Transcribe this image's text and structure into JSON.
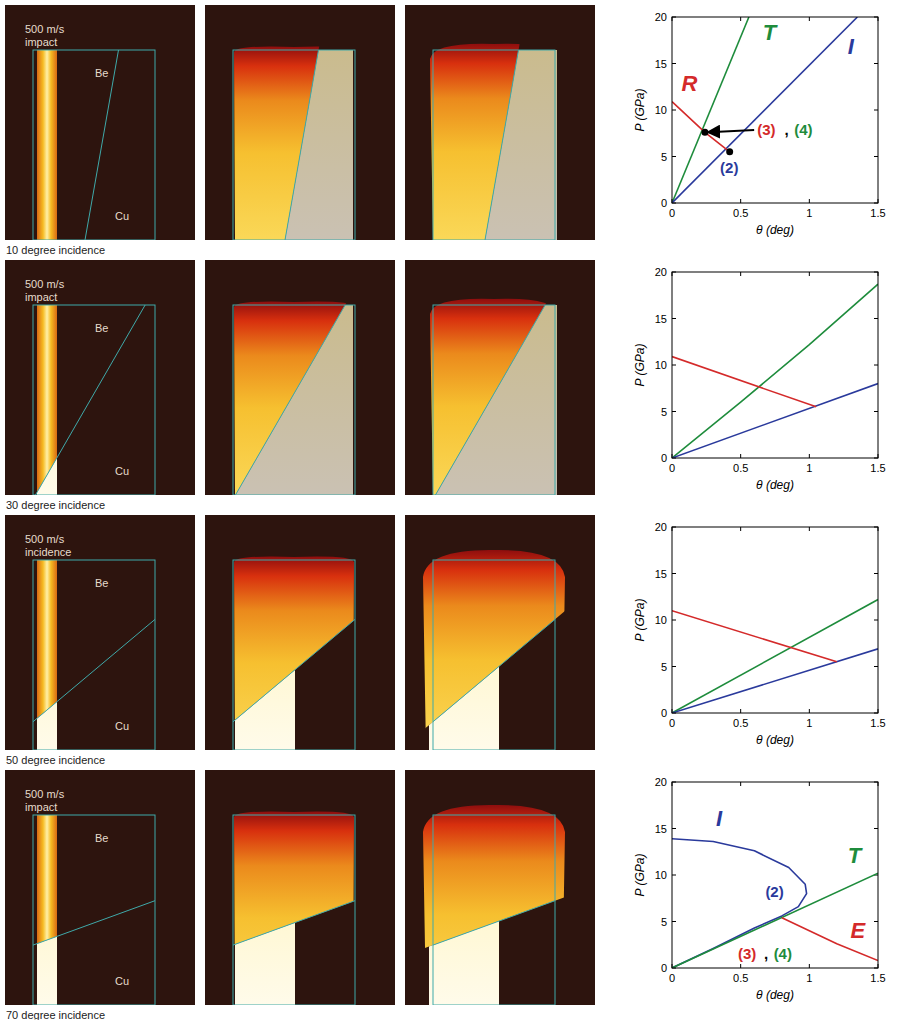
{
  "chart_data": [
    {
      "type": "line",
      "xlabel": "θ (deg)",
      "ylabel": "P (GPa)",
      "xlim": [
        0,
        1.5
      ],
      "ylim": [
        0,
        20
      ],
      "xticks": [
        0,
        0.5,
        1,
        1.5
      ],
      "yticks": [
        0,
        5,
        10,
        15,
        20
      ],
      "series": [
        {
          "color": "#1e8c3c",
          "x": [
            0,
            0.56
          ],
          "values": [
            0,
            20
          ]
        },
        {
          "color": "#2a3a9c",
          "x": [
            0,
            1.35
          ],
          "values": [
            0,
            20
          ]
        },
        {
          "color": "#d42a2a",
          "x": [
            0,
            0.24,
            0.42
          ],
          "values": [
            10.9,
            7.6,
            5.5
          ]
        },
        {
          "color": "#000000",
          "marker": "circle",
          "line_style": "none",
          "x": [
            0.42,
            0.24
          ],
          "values": [
            5.5,
            7.6
          ]
        }
      ],
      "annotations": [
        {
          "text": "T",
          "color": "#1e8c3c",
          "x": 0.66,
          "y": 17.5
        },
        {
          "text": "I",
          "color": "#2a3a9c",
          "x": 1.28,
          "y": 16
        },
        {
          "text": "R",
          "color": "#d42a2a",
          "x": 0.07,
          "y": 12
        },
        {
          "text": "(2)",
          "color": "#2a3a9c",
          "x": 0.35,
          "y": 3.2
        },
        {
          "text": "(3)",
          "color": "#d42a2a",
          "x": 0.62,
          "y": 7.3,
          "arrow_to": [
            0.24,
            7.6
          ]
        },
        {
          "text": ",",
          "color": "#000000",
          "x": 0.82,
          "y": 7.3
        },
        {
          "text": "(4)",
          "color": "#1e8c3c",
          "x": 0.89,
          "y": 7.3
        }
      ]
    },
    {
      "type": "line",
      "xlabel": "θ (deg)",
      "ylabel": "P (GPa)",
      "xlim": [
        0,
        1.5
      ],
      "ylim": [
        0,
        20
      ],
      "xticks": [
        0,
        0.5,
        1,
        1.5
      ],
      "yticks": [
        0,
        5,
        10,
        15,
        20
      ],
      "series": [
        {
          "color": "#1e8c3c",
          "x": [
            0,
            0.5,
            1,
            1.5
          ],
          "values": [
            0,
            6,
            12.2,
            18.7
          ]
        },
        {
          "color": "#2a3a9c",
          "x": [
            0,
            1.5
          ],
          "values": [
            0,
            8
          ]
        },
        {
          "color": "#d42a2a",
          "x": [
            0,
            1.05
          ],
          "values": [
            10.9,
            5.5
          ]
        }
      ]
    },
    {
      "type": "line",
      "xlabel": "θ (deg)",
      "ylabel": "P (GPa)",
      "xlim": [
        0,
        1.5
      ],
      "ylim": [
        0,
        20
      ],
      "xticks": [
        0,
        0.5,
        1,
        1.5
      ],
      "yticks": [
        0,
        5,
        10,
        15,
        20
      ],
      "series": [
        {
          "color": "#1e8c3c",
          "x": [
            0,
            1.5
          ],
          "values": [
            0,
            12.2
          ]
        },
        {
          "color": "#2a3a9c",
          "x": [
            0,
            1.5
          ],
          "values": [
            0,
            6.9
          ]
        },
        {
          "color": "#d42a2a",
          "x": [
            0,
            1.2
          ],
          "values": [
            11,
            5.5
          ]
        }
      ]
    },
    {
      "type": "line",
      "xlabel": "θ (deg)",
      "ylabel": "P (GPa)",
      "xlim": [
        0,
        1.5
      ],
      "ylim": [
        0,
        20
      ],
      "xticks": [
        0,
        0.5,
        1,
        1.5
      ],
      "yticks": [
        0,
        5,
        10,
        15,
        20
      ],
      "series": [
        {
          "color": "#2a3a9c",
          "x": [
            0,
            0.3,
            0.6,
            0.85,
            0.97,
            0.98,
            0.92,
            0.8,
            0.6,
            0.3,
            0
          ],
          "values": [
            13.9,
            13.6,
            12.6,
            10.8,
            9,
            8,
            6.6,
            5.6,
            4.3,
            2.1,
            0
          ]
        },
        {
          "color": "#1e8c3c",
          "x": [
            0,
            1.5
          ],
          "values": [
            0,
            10.2
          ]
        },
        {
          "color": "#d42a2a",
          "x": [
            0.8,
            1,
            1.2,
            1.5
          ],
          "values": [
            5.4,
            4,
            2.6,
            0.8
          ]
        }
      ],
      "annotations": [
        {
          "text": "I",
          "color": "#2a3a9c",
          "x": 0.32,
          "y": 15.3
        },
        {
          "text": "(2)",
          "color": "#2a3a9c",
          "x": 0.68,
          "y": 7.6
        },
        {
          "text": "T",
          "color": "#1e8c3c",
          "x": 1.28,
          "y": 11.3
        },
        {
          "text": "(3)",
          "color": "#d42a2a",
          "x": 0.48,
          "y": 1.0
        },
        {
          "text": ",",
          "color": "#000000",
          "x": 0.67,
          "y": 1.0
        },
        {
          "text": "(4)",
          "color": "#1e8c3c",
          "x": 0.74,
          "y": 1.0
        },
        {
          "text": "E",
          "color": "#d42a2a",
          "x": 1.3,
          "y": 3.2
        }
      ]
    }
  ],
  "simulations": [
    {
      "speed_label": "500 m/s",
      "mode_label": "impact",
      "angle": 10,
      "caption": "10 degree incidence",
      "materials": [
        "Be",
        "Cu"
      ]
    },
    {
      "speed_label": "500 m/s",
      "mode_label": "impact",
      "angle": 30,
      "caption": "30 degree incidence",
      "materials": [
        "Be",
        "Cu"
      ]
    },
    {
      "speed_label": "500 m/s",
      "mode_label": "incidence",
      "angle": 50,
      "caption": "50 degree incidence",
      "materials": [
        "Be",
        "Cu"
      ]
    },
    {
      "speed_label": "500 m/s",
      "mode_label": "impact",
      "angle": 70,
      "caption": "70 degree incidence",
      "materials": [
        "Be",
        "Cu"
      ]
    }
  ]
}
